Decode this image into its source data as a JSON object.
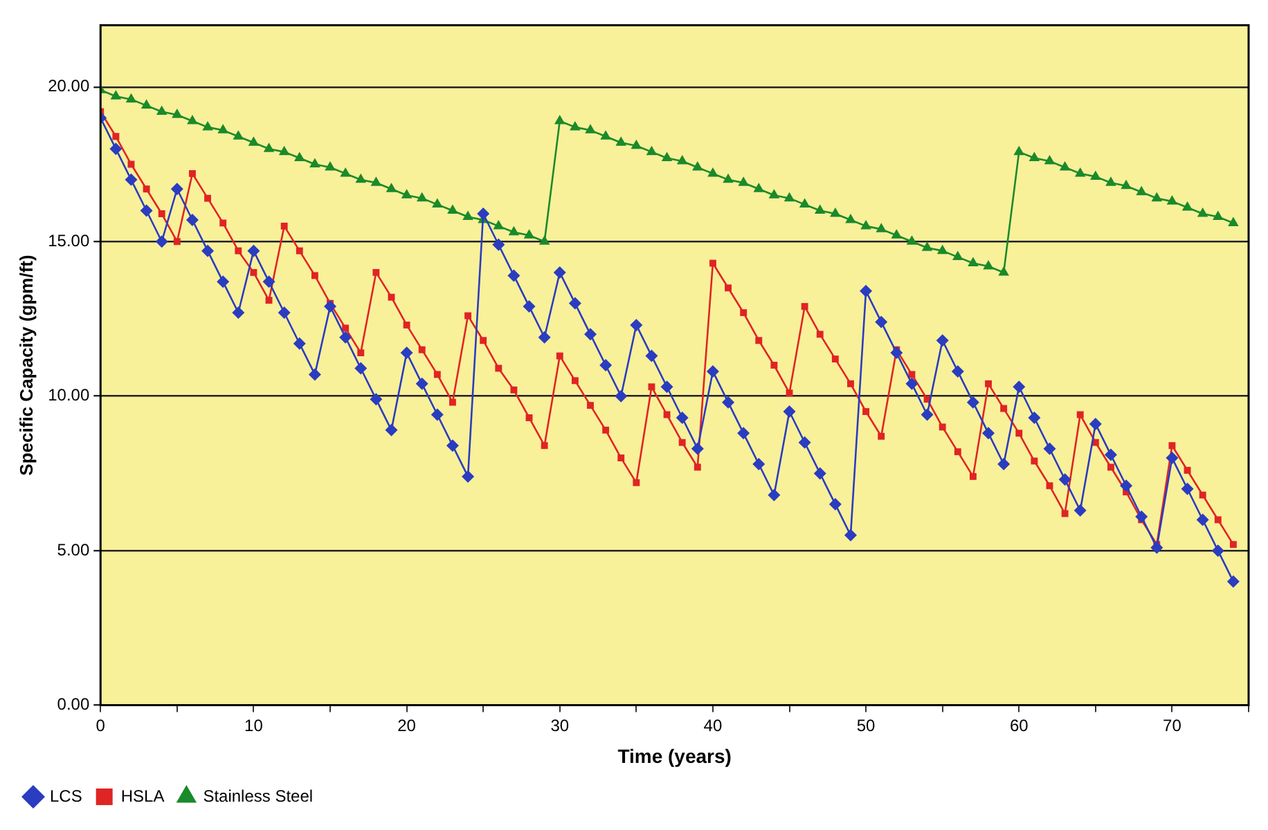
{
  "chart_data": {
    "type": "line",
    "xlabel": "Time (years)",
    "ylabel": "Specific Capacity (gpm/ft)",
    "x": [
      0,
      1,
      2,
      3,
      4,
      5,
      6,
      7,
      8,
      9,
      10,
      11,
      12,
      13,
      14,
      15,
      16,
      17,
      18,
      19,
      20,
      21,
      22,
      23,
      24,
      25,
      26,
      27,
      28,
      29,
      30,
      31,
      32,
      33,
      34,
      35,
      36,
      37,
      38,
      39,
      40,
      41,
      42,
      43,
      44,
      45,
      46,
      47,
      48,
      49,
      50,
      51,
      52,
      53,
      54,
      55,
      56,
      57,
      58,
      59,
      60,
      61,
      62,
      63,
      64,
      65,
      66,
      67,
      68,
      69,
      70,
      71,
      72,
      73,
      74
    ],
    "series": [
      {
        "name": "LCS",
        "color": "#2a3cc0",
        "marker": "diamond",
        "values": [
          19.0,
          18.0,
          17.0,
          16.0,
          15.0,
          16.7,
          15.7,
          14.7,
          13.7,
          12.7,
          14.7,
          13.7,
          12.7,
          11.7,
          10.7,
          12.9,
          11.9,
          10.9,
          9.9,
          8.9,
          11.4,
          10.4,
          9.4,
          8.4,
          7.4,
          15.9,
          14.9,
          13.9,
          12.9,
          11.9,
          14.0,
          13.0,
          12.0,
          11.0,
          10.0,
          12.3,
          11.3,
          10.3,
          9.3,
          8.3,
          10.8,
          9.8,
          8.8,
          7.8,
          6.8,
          9.5,
          8.5,
          7.5,
          6.5,
          5.5,
          13.4,
          12.4,
          11.4,
          10.4,
          9.4,
          11.8,
          10.8,
          9.8,
          8.8,
          7.8,
          10.3,
          9.3,
          8.3,
          7.3,
          6.3,
          9.1,
          8.1,
          7.1,
          6.1,
          5.1,
          8.0,
          7.0,
          6.0,
          5.0,
          4.0
        ]
      },
      {
        "name": "HSLA",
        "color": "#e02424",
        "marker": "square",
        "values": [
          19.2,
          18.4,
          17.5,
          16.7,
          15.9,
          15.0,
          17.2,
          16.4,
          15.6,
          14.7,
          14.0,
          13.1,
          15.5,
          14.7,
          13.9,
          13.0,
          12.2,
          11.4,
          14.0,
          13.2,
          12.3,
          11.5,
          10.7,
          9.8,
          12.6,
          11.8,
          10.9,
          10.2,
          9.3,
          8.4,
          11.3,
          10.5,
          9.7,
          8.9,
          8.0,
          7.2,
          10.3,
          9.4,
          8.5,
          7.7,
          14.3,
          13.5,
          12.7,
          11.8,
          11.0,
          10.1,
          12.9,
          12.0,
          11.2,
          10.4,
          9.5,
          8.7,
          11.5,
          10.7,
          9.9,
          9.0,
          8.2,
          7.4,
          10.4,
          9.6,
          8.8,
          7.9,
          7.1,
          6.2,
          9.4,
          8.5,
          7.7,
          6.9,
          6.0,
          5.2,
          8.4,
          7.6,
          6.8,
          6.0,
          5.2
        ]
      },
      {
        "name": "Stainless Steel",
        "color": "#1a8a2a",
        "marker": "triangle",
        "values": [
          19.9,
          19.7,
          19.6,
          19.4,
          19.2,
          19.1,
          18.9,
          18.7,
          18.6,
          18.4,
          18.2,
          18.0,
          17.9,
          17.7,
          17.5,
          17.4,
          17.2,
          17.0,
          16.9,
          16.7,
          16.5,
          16.4,
          16.2,
          16.0,
          15.8,
          15.7,
          15.5,
          15.3,
          15.2,
          15.0,
          18.9,
          18.7,
          18.6,
          18.4,
          18.2,
          18.1,
          17.9,
          17.7,
          17.6,
          17.4,
          17.2,
          17.0,
          16.9,
          16.7,
          16.5,
          16.4,
          16.2,
          16.0,
          15.9,
          15.7,
          15.5,
          15.4,
          15.2,
          15.0,
          14.8,
          14.7,
          14.5,
          14.3,
          14.2,
          14.0,
          17.9,
          17.7,
          17.6,
          17.4,
          17.2,
          17.1,
          16.9,
          16.8,
          16.6,
          16.4,
          16.3,
          16.1,
          15.9,
          15.8,
          15.6
        ]
      }
    ],
    "xlim": [
      0,
      75
    ],
    "xticks": [
      0,
      {
        "value": 5,
        "label": null
      },
      10,
      {
        "value": 15,
        "label": null
      },
      20,
      {
        "value": 25,
        "label": null
      },
      30,
      {
        "value": 35,
        "label": null
      },
      40,
      {
        "value": 45,
        "label": null
      },
      50,
      {
        "value": 55,
        "label": null
      },
      60,
      {
        "value": 65,
        "label": null
      },
      70,
      {
        "value": 75,
        "label": null
      }
    ],
    "ylim": [
      0,
      22
    ],
    "yticks": [
      {
        "value": 0,
        "label": "0.00"
      },
      {
        "value": 5,
        "label": "5.00"
      },
      {
        "value": 10,
        "label": "10.00"
      },
      {
        "value": 15,
        "label": "15.00"
      },
      {
        "value": 20,
        "label": "20.00"
      }
    ],
    "grid": "y",
    "legend": "bottom left",
    "line_style": "solid"
  }
}
